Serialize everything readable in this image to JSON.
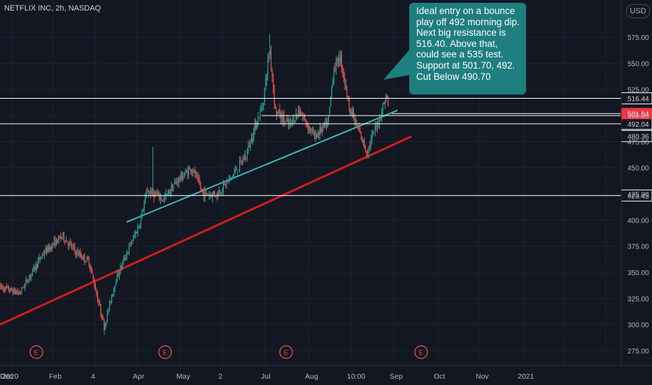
{
  "header": {
    "symbol_title": "NETFLIX INC, 2h, NASDAQ",
    "currency": "USD"
  },
  "annotation": {
    "text": "Ideal entry on a bounce play off 492 morning dip. Next big resistance is 516.40. Above that, could see a 535 test. Support at 501.70, 492. Cut Below 490.70"
  },
  "colors": {
    "background": "#131722",
    "grid": "#1e222d",
    "up_candle": "#26a69a",
    "down_candle": "#ef5350",
    "trendline_support": "#d01c1f",
    "trendline_channel": "#3fb8af",
    "horizontal_levels": "#ffffff",
    "price_badge": "#f23645",
    "annotation_bg": "#1f7e7e",
    "earnings_marker": "#d04848"
  },
  "chart_data": {
    "type": "candlestick",
    "y_axis_ticks": [
      575,
      550,
      525,
      500,
      475,
      450,
      425,
      400,
      375,
      350,
      325,
      300,
      275
    ],
    "y_axis_tick_labels": [
      "575.00",
      "550.00",
      "525.00",
      "500.00",
      "475.00",
      "450.00",
      "425.00",
      "400.00",
      "375.00",
      "350.00",
      "325.00",
      "300.00",
      "275.00"
    ],
    "x_axis_labels": [
      "2020",
      "Feb",
      "4",
      "Apr",
      "May",
      "2",
      "Jul",
      "Aug",
      "10:00",
      "Sep",
      "Oct",
      "Nov",
      "Dec",
      "2021"
    ],
    "horizontal_levels": [
      516.44,
      499.93,
      492.04,
      423.45
    ],
    "horizontal_level_labels": [
      "516.44",
      "499.93",
      "492.04",
      "423.45"
    ],
    "current_price": 501.84,
    "current_price_label": "501.84",
    "extra_price_marks": [
      480.36
    ],
    "extra_price_mark_labels": [
      "480.36"
    ],
    "earnings_markers": {
      "label": "E",
      "dates": [
        "2020-01-21",
        "2020-04-21",
        "2020-07-16",
        "2020-10-20"
      ]
    },
    "price_path": [
      [
        "2020-01-01",
        336
      ],
      [
        "2020-01-15",
        330
      ],
      [
        "2020-02-01",
        368
      ],
      [
        "2020-02-15",
        385
      ],
      [
        "2020-02-24",
        370
      ],
      [
        "2020-03-05",
        360
      ],
      [
        "2020-03-16",
        298
      ],
      [
        "2020-03-24",
        342
      ],
      [
        "2020-04-01",
        368
      ],
      [
        "2020-04-10",
        395
      ],
      [
        "2020-04-16",
        428
      ],
      [
        "2020-04-28",
        420
      ],
      [
        "2020-05-07",
        437
      ],
      [
        "2020-05-18",
        450
      ],
      [
        "2020-05-26",
        425
      ],
      [
        "2020-06-05",
        425
      ],
      [
        "2020-06-15",
        440
      ],
      [
        "2020-06-26",
        462
      ],
      [
        "2020-07-02",
        488
      ],
      [
        "2020-07-08",
        510
      ],
      [
        "2020-07-13",
        565
      ],
      [
        "2020-07-17",
        505
      ],
      [
        "2020-07-27",
        490
      ],
      [
        "2020-08-03",
        505
      ],
      [
        "2020-08-14",
        480
      ],
      [
        "2020-08-24",
        492
      ],
      [
        "2020-08-28",
        545
      ],
      [
        "2020-09-02",
        555
      ],
      [
        "2020-09-08",
        510
      ],
      [
        "2020-09-14",
        488
      ],
      [
        "2020-09-21",
        465
      ],
      [
        "2020-09-25",
        480
      ],
      [
        "2020-09-30",
        498
      ],
      [
        "2020-10-05",
        520
      ],
      [
        "2020-10-07",
        502
      ]
    ],
    "trendlines": [
      {
        "name": "support",
        "from": [
          "2020-01-01",
          300
        ],
        "to": [
          "2020-10-23",
          480
        ]
      },
      {
        "name": "channel",
        "from": [
          "2020-04-01",
          398
        ],
        "to": [
          "2020-10-13",
          505
        ]
      }
    ],
    "x_range": [
      "2020-01-01",
      "2021-01-20"
    ],
    "ylim": [
      260,
      605
    ],
    "grid": true
  }
}
